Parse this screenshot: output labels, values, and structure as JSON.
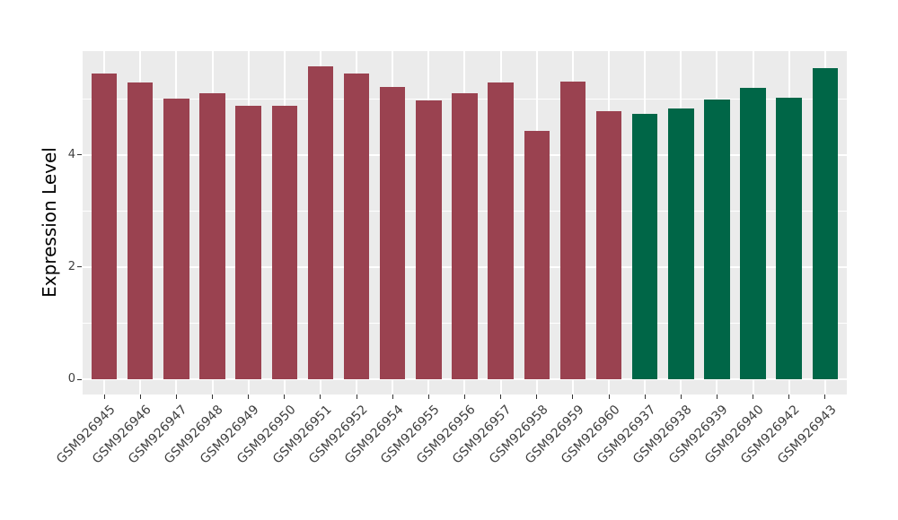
{
  "chart_data": {
    "type": "bar",
    "title": "",
    "xlabel": "",
    "ylabel": "Expression Level",
    "ylim": [
      0,
      5.87
    ],
    "yticks": [
      0,
      2,
      4
    ],
    "minor_gridlines": [
      1,
      3,
      5
    ],
    "legend": "none",
    "grid": "on",
    "panel_background": "#EBEBEB",
    "gridline_color": "#FFFFFF",
    "axis_text_color": "#404040",
    "axis_title_color": "#000000",
    "bar_colors": {
      "maroon": "#9A4250",
      "green": "#006647"
    },
    "bars": [
      {
        "label": "GSM926945",
        "value": 5.45,
        "color": "maroon"
      },
      {
        "label": "GSM926946",
        "value": 5.28,
        "color": "maroon"
      },
      {
        "label": "GSM926947",
        "value": 5.0,
        "color": "maroon"
      },
      {
        "label": "GSM926948",
        "value": 5.1,
        "color": "maroon"
      },
      {
        "label": "GSM926949",
        "value": 4.87,
        "color": "maroon"
      },
      {
        "label": "GSM926950",
        "value": 4.87,
        "color": "maroon"
      },
      {
        "label": "GSM926951",
        "value": 5.58,
        "color": "maroon"
      },
      {
        "label": "GSM926952",
        "value": 5.45,
        "color": "maroon"
      },
      {
        "label": "GSM926954",
        "value": 5.21,
        "color": "maroon"
      },
      {
        "label": "GSM926955",
        "value": 4.97,
        "color": "maroon"
      },
      {
        "label": "GSM926956",
        "value": 5.1,
        "color": "maroon"
      },
      {
        "label": "GSM926957",
        "value": 5.28,
        "color": "maroon"
      },
      {
        "label": "GSM926958",
        "value": 4.42,
        "color": "maroon"
      },
      {
        "label": "GSM926959",
        "value": 5.3,
        "color": "maroon"
      },
      {
        "label": "GSM926960",
        "value": 4.77,
        "color": "maroon"
      },
      {
        "label": "GSM926937",
        "value": 4.73,
        "color": "green"
      },
      {
        "label": "GSM926938",
        "value": 4.83,
        "color": "green"
      },
      {
        "label": "GSM926939",
        "value": 4.98,
        "color": "green"
      },
      {
        "label": "GSM926940",
        "value": 5.19,
        "color": "green"
      },
      {
        "label": "GSM926942",
        "value": 5.01,
        "color": "green"
      },
      {
        "label": "GSM926943",
        "value": 5.55,
        "color": "green"
      }
    ]
  }
}
